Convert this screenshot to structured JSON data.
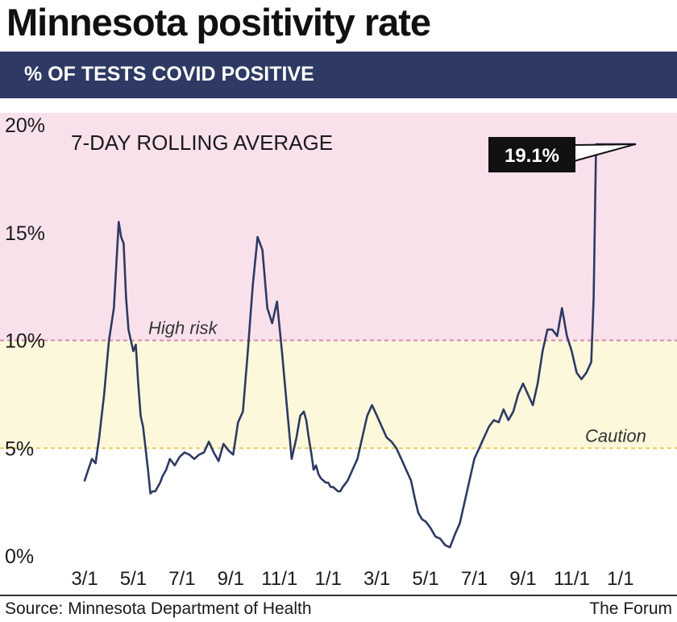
{
  "header": {
    "title": "Minnesota positivity rate",
    "subtitle": "% OF TESTS COVID POSITIVE"
  },
  "footer": {
    "source": "Source: Minnesota Department of Health",
    "credit": "The Forum"
  },
  "colors": {
    "banner": "#2e3a63",
    "high_zone": "#f9e1ec",
    "caution_zone": "#fdf8dc",
    "line": "#2e3a63",
    "high_risk_line": "#d98aa8",
    "caution_line": "#e6cf5a",
    "callout_bg": "#111111"
  },
  "chart_data": {
    "type": "line",
    "title": "% OF TESTS COVID POSITIVE",
    "subtitle_label": "7-DAY ROLLING AVERAGE",
    "xlabel": "",
    "ylabel": "",
    "ylim": [
      0,
      20
    ],
    "xlim": [
      0,
      22.6
    ],
    "yticks": [
      0,
      5,
      10,
      15,
      20
    ],
    "ytick_labels": [
      "0%",
      "5%",
      "10%",
      "15%",
      "20%"
    ],
    "xticks": [
      0,
      2,
      4,
      6,
      8,
      10,
      12,
      14,
      16,
      18,
      20,
      22
    ],
    "xtick_labels": [
      "3/1",
      "5/1",
      "7/1",
      "9/1",
      "11/1",
      "1/1",
      "3/1",
      "5/1",
      "7/1",
      "9/1",
      "11/1",
      "1/1"
    ],
    "zones": [
      {
        "name": "High risk",
        "from": 10,
        "to": 20
      },
      {
        "name": "Caution",
        "from": 5,
        "to": 10
      }
    ],
    "threshold_labels": {
      "high": "High risk",
      "caution": "Caution"
    },
    "annotation": {
      "text": "19.1%",
      "x": 22.6,
      "y": 19.1
    },
    "series": [
      {
        "name": "7-day rolling average",
        "x": [
          0.0,
          0.15,
          0.3,
          0.45,
          0.6,
          0.8,
          1.0,
          1.2,
          1.4,
          1.5,
          1.6,
          1.7,
          1.8,
          1.9,
          2.0,
          2.1,
          2.2,
          2.3,
          2.4,
          2.5,
          2.6,
          2.7,
          2.8,
          2.9,
          3.0,
          3.1,
          3.2,
          3.35,
          3.5,
          3.7,
          3.9,
          4.1,
          4.3,
          4.5,
          4.7,
          4.9,
          5.1,
          5.3,
          5.5,
          5.7,
          5.9,
          6.1,
          6.3,
          6.5,
          6.7,
          6.9,
          7.1,
          7.3,
          7.5,
          7.7,
          7.9,
          8.1,
          8.3,
          8.5,
          8.7,
          8.85,
          9.0,
          9.1,
          9.2,
          9.3,
          9.4,
          9.5,
          9.6,
          9.7,
          9.8,
          9.9,
          10.0,
          10.1,
          10.2,
          10.3,
          10.4,
          10.5,
          10.6,
          10.8,
          11.0,
          11.2,
          11.4,
          11.6,
          11.8,
          12.0,
          12.2,
          12.4,
          12.6,
          12.8,
          13.0,
          13.2,
          13.4,
          13.55,
          13.7,
          13.85,
          14.0,
          14.2,
          14.4,
          14.6,
          14.8,
          15.0,
          15.2,
          15.4,
          15.6,
          15.8,
          16.0,
          16.2,
          16.4,
          16.6,
          16.8,
          17.0,
          17.2,
          17.4,
          17.6,
          17.8,
          18.0,
          18.2,
          18.4,
          18.6,
          18.8,
          19.0,
          19.2,
          19.4,
          19.6,
          19.8,
          20.0,
          20.2,
          20.4,
          20.6,
          20.8,
          20.9,
          21.0,
          21.1,
          21.2,
          21.3,
          21.4,
          21.55,
          21.7,
          21.85,
          22.0,
          22.2,
          22.4,
          22.6
        ],
        "values": [
          3.5,
          4.0,
          4.5,
          4.3,
          5.5,
          7.5,
          10.0,
          11.5,
          15.5,
          14.8,
          14.5,
          12.0,
          10.5,
          10.0,
          9.5,
          9.8,
          8.0,
          6.5,
          6.0,
          5.0,
          4.0,
          2.9,
          3.0,
          3.0,
          3.2,
          3.4,
          3.7,
          4.0,
          4.5,
          4.2,
          4.6,
          4.8,
          4.7,
          4.5,
          4.7,
          4.8,
          5.3,
          4.8,
          4.4,
          5.2,
          4.9,
          4.7,
          6.2,
          6.7,
          9.5,
          12.5,
          14.8,
          14.2,
          11.5,
          10.8,
          11.8,
          9.5,
          7.0,
          4.5,
          5.5,
          6.5,
          6.7,
          6.3,
          5.5,
          4.8,
          4.0,
          4.2,
          3.8,
          3.6,
          3.5,
          3.4,
          3.4,
          3.2,
          3.2,
          3.1,
          3.0,
          3.0,
          3.2,
          3.5,
          4.0,
          4.5,
          5.5,
          6.5,
          7.0,
          6.5,
          6.0,
          5.5,
          5.3,
          5.0,
          4.5,
          4.0,
          3.5,
          2.7,
          2.0,
          1.7,
          1.6,
          1.3,
          0.9,
          0.8,
          0.5,
          0.4,
          1.0,
          1.5,
          2.5,
          3.5,
          4.5,
          5.0,
          5.5,
          6.0,
          6.3,
          6.2,
          6.8,
          6.3,
          6.7,
          7.5,
          8.0,
          7.5,
          7.0,
          8.0,
          9.5,
          10.5,
          10.5,
          10.2,
          11.5,
          10.2,
          9.5,
          8.5,
          8.2,
          8.5,
          9.0,
          12.0,
          19.1,
          19.1,
          19.1,
          19.1,
          19.1,
          19.1,
          19.1,
          19.1,
          19.1,
          19.1,
          19.1,
          19.1
        ]
      }
    ]
  }
}
